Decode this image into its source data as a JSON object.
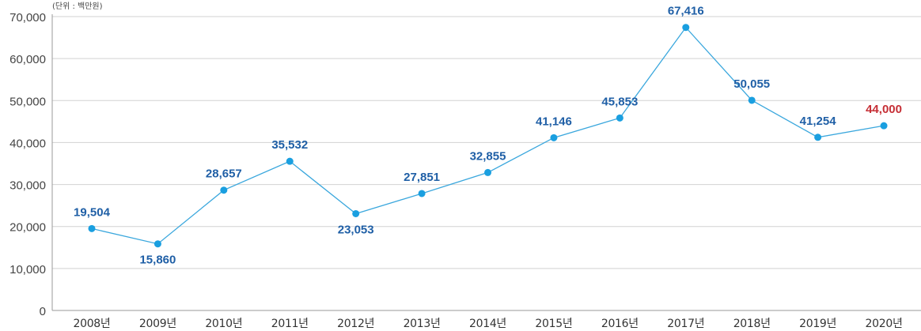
{
  "colors": {
    "line": "#3aa7dd",
    "point": "#1a9fe0",
    "label": "#1f5fa6",
    "highlight_label": "#c62f36",
    "grid": "#d2d2d2",
    "axis": "#9a9a9a",
    "tick_text": "#444444"
  },
  "chart_data": {
    "type": "line",
    "unit": "(단위 : 백만원)",
    "categories": [
      "2008년",
      "2009년",
      "2010년",
      "2011년",
      "2012년",
      "2013년",
      "2014년",
      "2015년",
      "2016년",
      "2017년",
      "2018년",
      "2019년",
      "2020년"
    ],
    "series": [
      {
        "values": [
          19504,
          15860,
          28657,
          35532,
          23053,
          27851,
          32855,
          41146,
          45853,
          67416,
          50055,
          41254,
          44000
        ]
      }
    ],
    "data_labels": [
      "19,504",
      "15,860",
      "28,657",
      "35,532",
      "23,053",
      "27,851",
      "32,855",
      "41,146",
      "45,853",
      "67,416",
      "50,055",
      "41,254",
      "44,000"
    ],
    "highlighted_category": "2020년",
    "y_ticks": [
      0,
      10000,
      20000,
      30000,
      40000,
      50000,
      60000,
      70000
    ],
    "y_tick_labels": [
      "0",
      "10,000",
      "20,000",
      "30,000",
      "40,000",
      "50,000",
      "60,000",
      "70,000"
    ],
    "ylim": [
      0,
      70000
    ],
    "grid": true
  }
}
